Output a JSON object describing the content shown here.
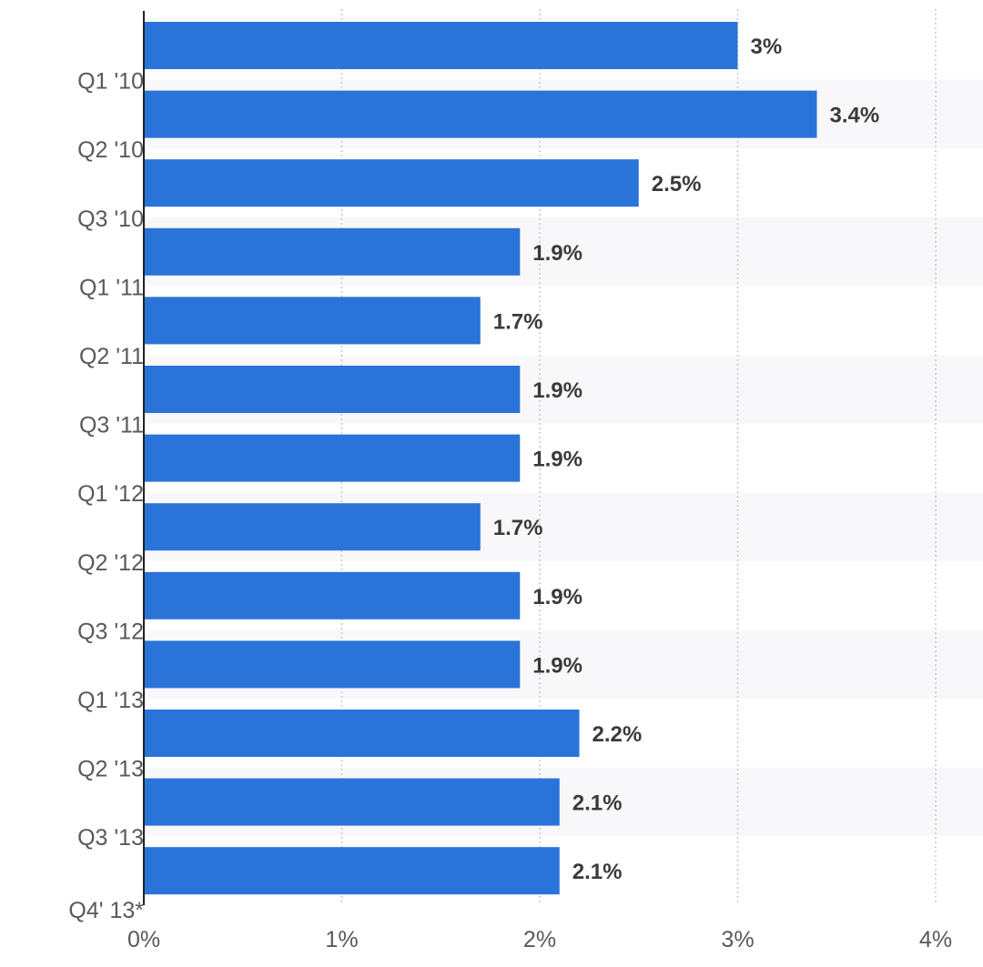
{
  "chart_data": {
    "type": "bar",
    "orientation": "horizontal",
    "title": "",
    "xlabel": "",
    "ylabel": "",
    "categories": [
      "",
      "Q1 '10",
      "Q2 '10",
      "Q3 '10",
      "Q1 '11",
      "Q2 '11",
      "Q3 '11",
      "Q1 '12",
      "Q2 '12",
      "Q3 '12",
      "Q1 '13",
      "Q2 '13",
      "Q3 '13"
    ],
    "values": [
      3.0,
      3.4,
      2.5,
      1.9,
      1.7,
      1.9,
      1.9,
      1.7,
      1.9,
      1.9,
      2.2,
      2.1,
      2.1
    ],
    "value_labels": [
      "3%",
      "3.4%",
      "2.5%",
      "1.9%",
      "1.7%",
      "1.9%",
      "1.9%",
      "1.7%",
      "1.9%",
      "1.9%",
      "2.2%",
      "2.1%",
      "2.1%"
    ],
    "bottom_category_label": "Q4' 13*",
    "xlim": [
      0,
      4
    ],
    "x_ticks": [
      0,
      1,
      2,
      3,
      4
    ],
    "x_tick_labels": [
      "0%",
      "1%",
      "2%",
      "3%",
      "4%"
    ],
    "grid": true,
    "legend": "none"
  },
  "colors": {
    "bar": "#2a73d9",
    "band": "#f8f8fa",
    "grid": "#c8c8c8",
    "axis": "#222222"
  }
}
